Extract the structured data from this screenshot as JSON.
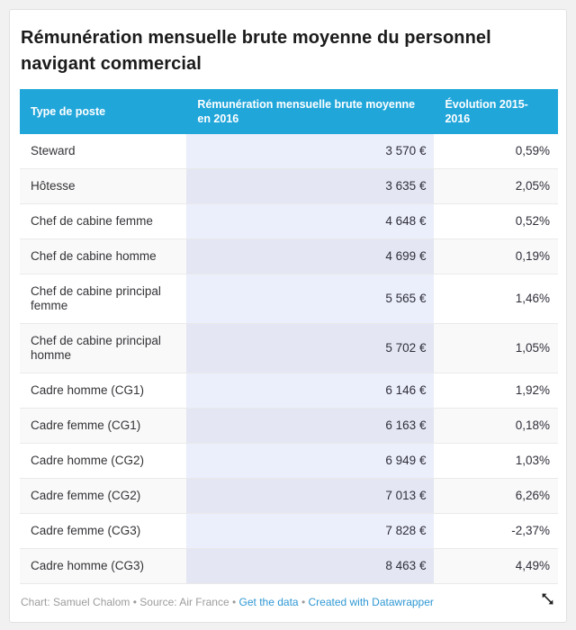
{
  "title": "Rémunération mensuelle brute moyenne du personnel navigant commercial",
  "colors": {
    "header_background": "#21a6da",
    "header_text": "#ffffff",
    "highlight_column_odd": "#ebeefb",
    "highlight_column_even": "#e4e7f3",
    "row_stripe": "#f9f9f9",
    "link_blue": "#2e97d3",
    "footer_gray": "#9c9c9c"
  },
  "chart_data": {
    "type": "table",
    "title": "Rémunération mensuelle brute moyenne du personnel navigant commercial",
    "columns": [
      "Type de poste",
      "Rémunération mensuelle brute moyenne en 2016",
      "Évolution 2015-2016"
    ],
    "rows": [
      {
        "poste": "Steward",
        "remuneration": "3 570 €",
        "evolution": "0,59%"
      },
      {
        "poste": "Hôtesse",
        "remuneration": "3 635 €",
        "evolution": "2,05%"
      },
      {
        "poste": "Chef de cabine femme",
        "remuneration": "4 648 €",
        "evolution": "0,52%"
      },
      {
        "poste": "Chef de cabine homme",
        "remuneration": "4 699 €",
        "evolution": "0,19%"
      },
      {
        "poste": "Chef de cabine principal femme",
        "remuneration": "5 565 €",
        "evolution": "1,46%"
      },
      {
        "poste": "Chef de cabine principal homme",
        "remuneration": "5 702 €",
        "evolution": "1,05%"
      },
      {
        "poste": "Cadre homme (CG1)",
        "remuneration": "6 146 €",
        "evolution": "1,92%"
      },
      {
        "poste": "Cadre femme (CG1)",
        "remuneration": "6 163 €",
        "evolution": "0,18%"
      },
      {
        "poste": "Cadre homme (CG2)",
        "remuneration": "6 949 €",
        "evolution": "1,03%"
      },
      {
        "poste": "Cadre femme (CG2)",
        "remuneration": "7 013 €",
        "evolution": "6,26%"
      },
      {
        "poste": "Cadre femme (CG3)",
        "remuneration": "7 828 €",
        "evolution": "-2,37%"
      },
      {
        "poste": "Cadre homme (CG3)",
        "remuneration": "8 463 €",
        "evolution": "4,49%"
      }
    ]
  },
  "table": {
    "columns": [
      {
        "label": "Type de poste"
      },
      {
        "label": "Rémunération mensuelle brute moyenne en 2016"
      },
      {
        "label": "Évolution 2015-2016"
      }
    ]
  },
  "footer": {
    "byline": "Chart: Samuel Chalom",
    "separator": "•",
    "source": "Source: Air France",
    "link_get_data": "Get the data",
    "link_created_with": "Created with Datawrapper"
  }
}
